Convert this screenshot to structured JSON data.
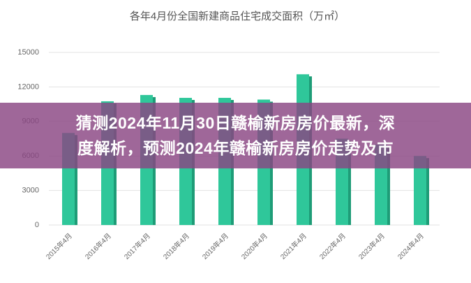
{
  "chart_data": {
    "type": "bar",
    "title": "各年4月份全国新建商品住宅成交面积（万㎡）",
    "categories": [
      "2015年4月",
      "2016年4月",
      "2017年4月",
      "2018年4月",
      "2019年4月",
      "2020年4月",
      "2021年4月",
      "2022年4月",
      "2023年4月",
      "2024年4月"
    ],
    "values": [
      8000,
      10750,
      11300,
      11050,
      11050,
      10900,
      13100,
      7500,
      7000,
      6000
    ],
    "color": "#2fc79a",
    "ylim": [
      0,
      15000
    ],
    "yticks": [
      0,
      3000,
      6000,
      9000,
      12000,
      15000
    ],
    "grid": true
  },
  "overlay": {
    "lines": [
      "猜测2024年11月30日赣榆新房房价最新，深",
      "度解析，预测2024年赣榆新房房价走势及市"
    ]
  }
}
